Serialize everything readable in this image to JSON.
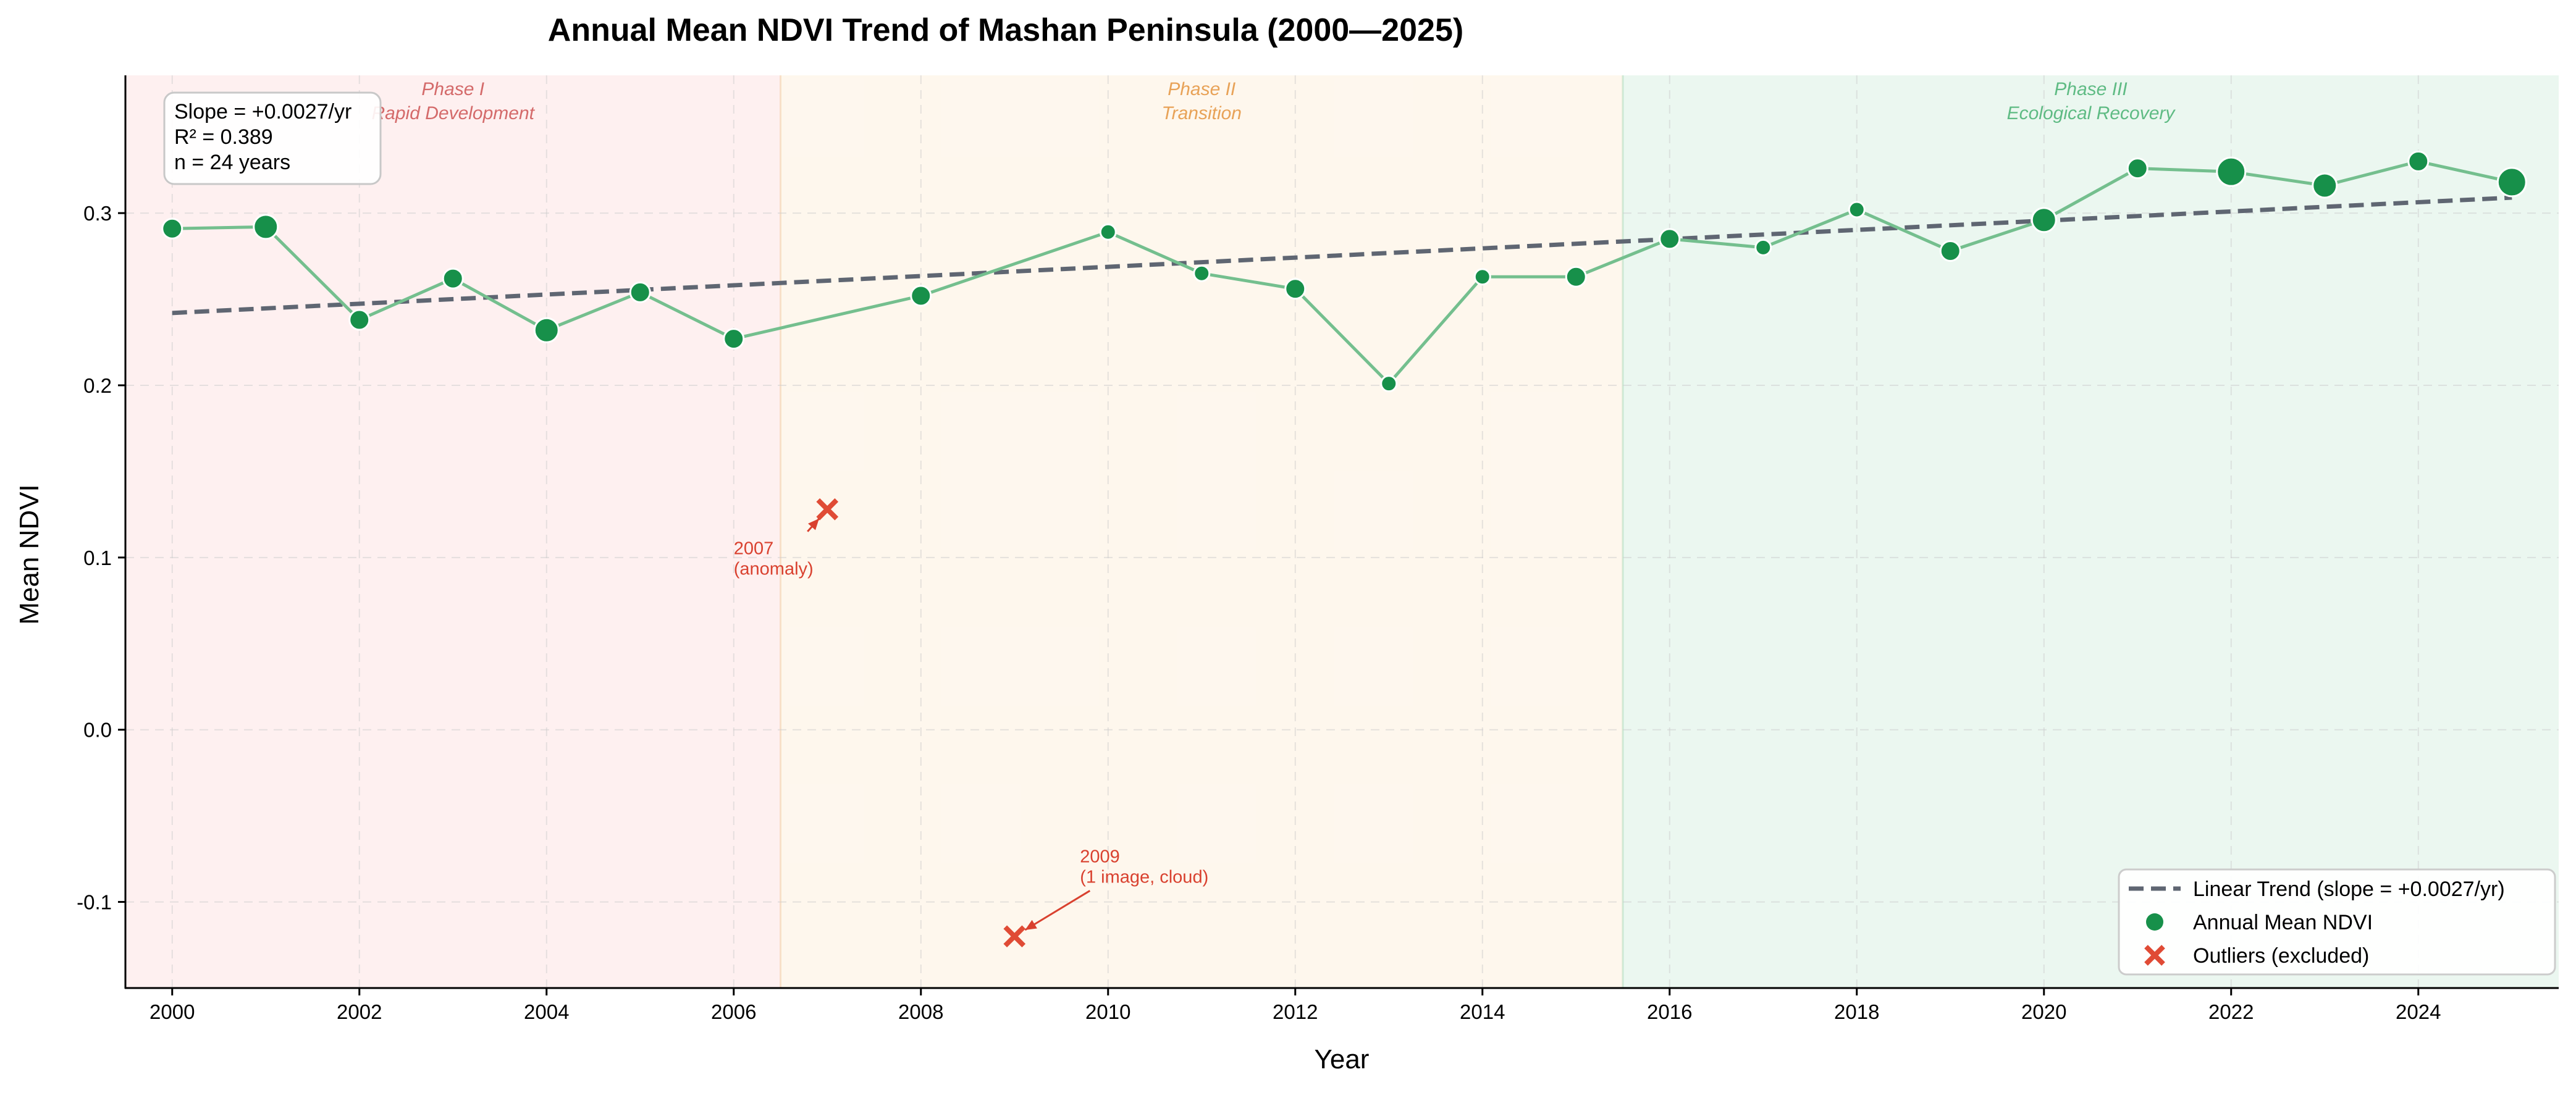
{
  "chart_data": {
    "type": "line",
    "title": "Annual Mean NDVI Trend of Mashan Peninsula (2000—2025)",
    "xlabel": "Year",
    "ylabel": "Mean NDVI",
    "xlim": [
      1999.5,
      2025.5
    ],
    "ylim": [
      -0.15,
      0.38
    ],
    "x_ticks": [
      2000,
      2002,
      2004,
      2006,
      2008,
      2010,
      2012,
      2014,
      2016,
      2018,
      2020,
      2022,
      2024
    ],
    "x_tick_labels": [
      "2000",
      "2002",
      "2004",
      "2006",
      "2008",
      "2010",
      "2012",
      "2014",
      "2016",
      "2018",
      "2020",
      "2022",
      "2024"
    ],
    "y_ticks": [
      -0.1,
      0.0,
      0.1,
      0.2,
      0.3
    ],
    "y_tick_labels": [
      "-0.1",
      "0.0",
      "0.1",
      "0.2",
      "0.3"
    ],
    "grid": true,
    "series": [
      {
        "name": "Annual Mean NDVI",
        "type": "line+scatter",
        "line_color": "#74bf8e",
        "marker_color": "#17904a",
        "x": [
          2000,
          2001,
          2002,
          2003,
          2004,
          2005,
          2006,
          2008,
          2010,
          2011,
          2012,
          2013,
          2014,
          2015,
          2016,
          2017,
          2018,
          2019,
          2020,
          2021,
          2022,
          2023,
          2024,
          2025
        ],
        "y": [
          0.291,
          0.292,
          0.238,
          0.262,
          0.232,
          0.254,
          0.227,
          0.252,
          0.289,
          0.265,
          0.256,
          0.201,
          0.263,
          0.263,
          0.285,
          0.28,
          0.302,
          0.278,
          0.296,
          0.326,
          0.324,
          0.316,
          0.33,
          0.318
        ],
        "marker_scale": [
          2,
          3,
          2,
          2,
          3,
          2,
          2,
          2,
          1,
          1,
          2,
          1,
          1,
          2,
          2,
          1,
          1,
          2,
          3,
          2,
          4,
          3,
          2,
          4
        ]
      },
      {
        "name": "Linear Trend (slope = +0.0027/yr)",
        "type": "line",
        "style": "dashed",
        "color": "#5f6672",
        "x": [
          2000,
          2025
        ],
        "y": [
          0.242,
          0.309
        ]
      },
      {
        "name": "Outliers (excluded)",
        "type": "scatter",
        "marker": "x",
        "color": "#e04b35",
        "x": [
          2007,
          2009
        ],
        "y": [
          0.128,
          -0.12
        ]
      }
    ],
    "phases": [
      {
        "x0": 1999.5,
        "x1": 2006.5,
        "title": "Phase I",
        "subtitle": "Rapid Development",
        "fill": "#fdeaea",
        "text_color": "#d46a6a"
      },
      {
        "x0": 2006.5,
        "x1": 2015.5,
        "title": "Phase II",
        "subtitle": "Transition",
        "fill": "#fdf4e6",
        "text_color": "#e8a257"
      },
      {
        "x0": 2015.5,
        "x1": 2025.5,
        "title": "Phase III",
        "subtitle": "Ecological Recovery",
        "fill": "#e3f4e9",
        "text_color": "#5fbb84"
      }
    ],
    "annotations": [
      {
        "lines": [
          "2007",
          "(anomaly)"
        ],
        "target_x": 2007,
        "target_y": 0.128,
        "text_x": 2006.0,
        "text_y": 0.102
      },
      {
        "lines": [
          "2009",
          "(1 image, cloud)"
        ],
        "target_x": 2009,
        "target_y": -0.12,
        "text_x": 2009.7,
        "text_y": -0.077
      }
    ],
    "stats_box": [
      "Slope = +0.0027/yr",
      "R² = 0.389",
      "n = 24 years"
    ],
    "legend": {
      "position": "bottom-right",
      "entries": [
        "Linear Trend (slope = +0.0027/yr)",
        "Annual Mean NDVI",
        "Outliers (excluded)"
      ]
    },
    "colors": {
      "annotation": "#d9412f",
      "axis": "#000000",
      "grid": "#cccccc"
    }
  }
}
